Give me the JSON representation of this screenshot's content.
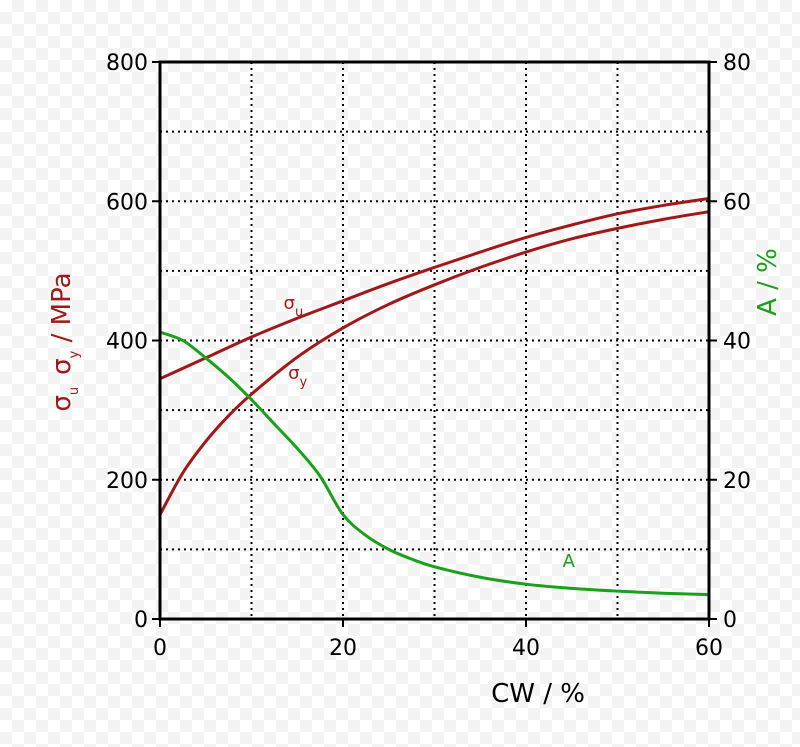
{
  "chart_data": {
    "type": "line",
    "title": "",
    "xlabel": "CW / %",
    "ylabel_left": {
      "text": "σ",
      "sub_u": "u",
      "sub_y": "y",
      "unit": " / MPa"
    },
    "ylabel_right": "A / %",
    "xlim": [
      0,
      60
    ],
    "ylim_left": [
      0,
      800
    ],
    "ylim_right": [
      0,
      80
    ],
    "x_ticks": [
      0,
      20,
      40,
      60
    ],
    "y_left_ticks": [
      0,
      200,
      400,
      600,
      800
    ],
    "y_right_ticks": [
      0,
      20,
      40,
      60,
      80
    ],
    "grid": {
      "x_step": 10,
      "y_step": 100,
      "style": "dotted"
    },
    "colors": {
      "sigma": "#a01818",
      "elongation": "#1aa01a",
      "axes": "#000000",
      "grid": "#000000"
    },
    "series": [
      {
        "name": "σu",
        "label_main": "σ",
        "label_sub": "u",
        "axis": "left",
        "color": "#a01818",
        "x": [
          0,
          5,
          10,
          15,
          20,
          25,
          30,
          35,
          40,
          45,
          50,
          55,
          60
        ],
        "y": [
          345,
          375,
          405,
          432,
          457,
          482,
          505,
          527,
          548,
          566,
          582,
          594,
          604
        ]
      },
      {
        "name": "σy",
        "label_main": "σ",
        "label_sub": "y",
        "axis": "left",
        "color": "#a01818",
        "x": [
          0,
          2.5,
          5,
          7.5,
          10,
          15,
          20,
          25,
          30,
          35,
          40,
          45,
          50,
          55,
          60
        ],
        "y": [
          150,
          210,
          255,
          292,
          323,
          376,
          418,
          452,
          480,
          505,
          527,
          546,
          561,
          574,
          585
        ]
      },
      {
        "name": "A",
        "label_main": "A",
        "label_sub": "",
        "axis": "right",
        "color": "#1aa01a",
        "x": [
          0,
          2.5,
          5,
          7.5,
          10,
          12.5,
          15,
          17.5,
          20,
          22.5,
          25,
          27.5,
          30,
          35,
          40,
          45,
          50,
          55,
          60
        ],
        "y": [
          41.2,
          40.0,
          37.5,
          34.7,
          31.5,
          28.0,
          24.5,
          20.5,
          15.0,
          12.0,
          10.0,
          8.6,
          7.5,
          6.0,
          5.0,
          4.4,
          4.0,
          3.7,
          3.5
        ]
      }
    ]
  }
}
